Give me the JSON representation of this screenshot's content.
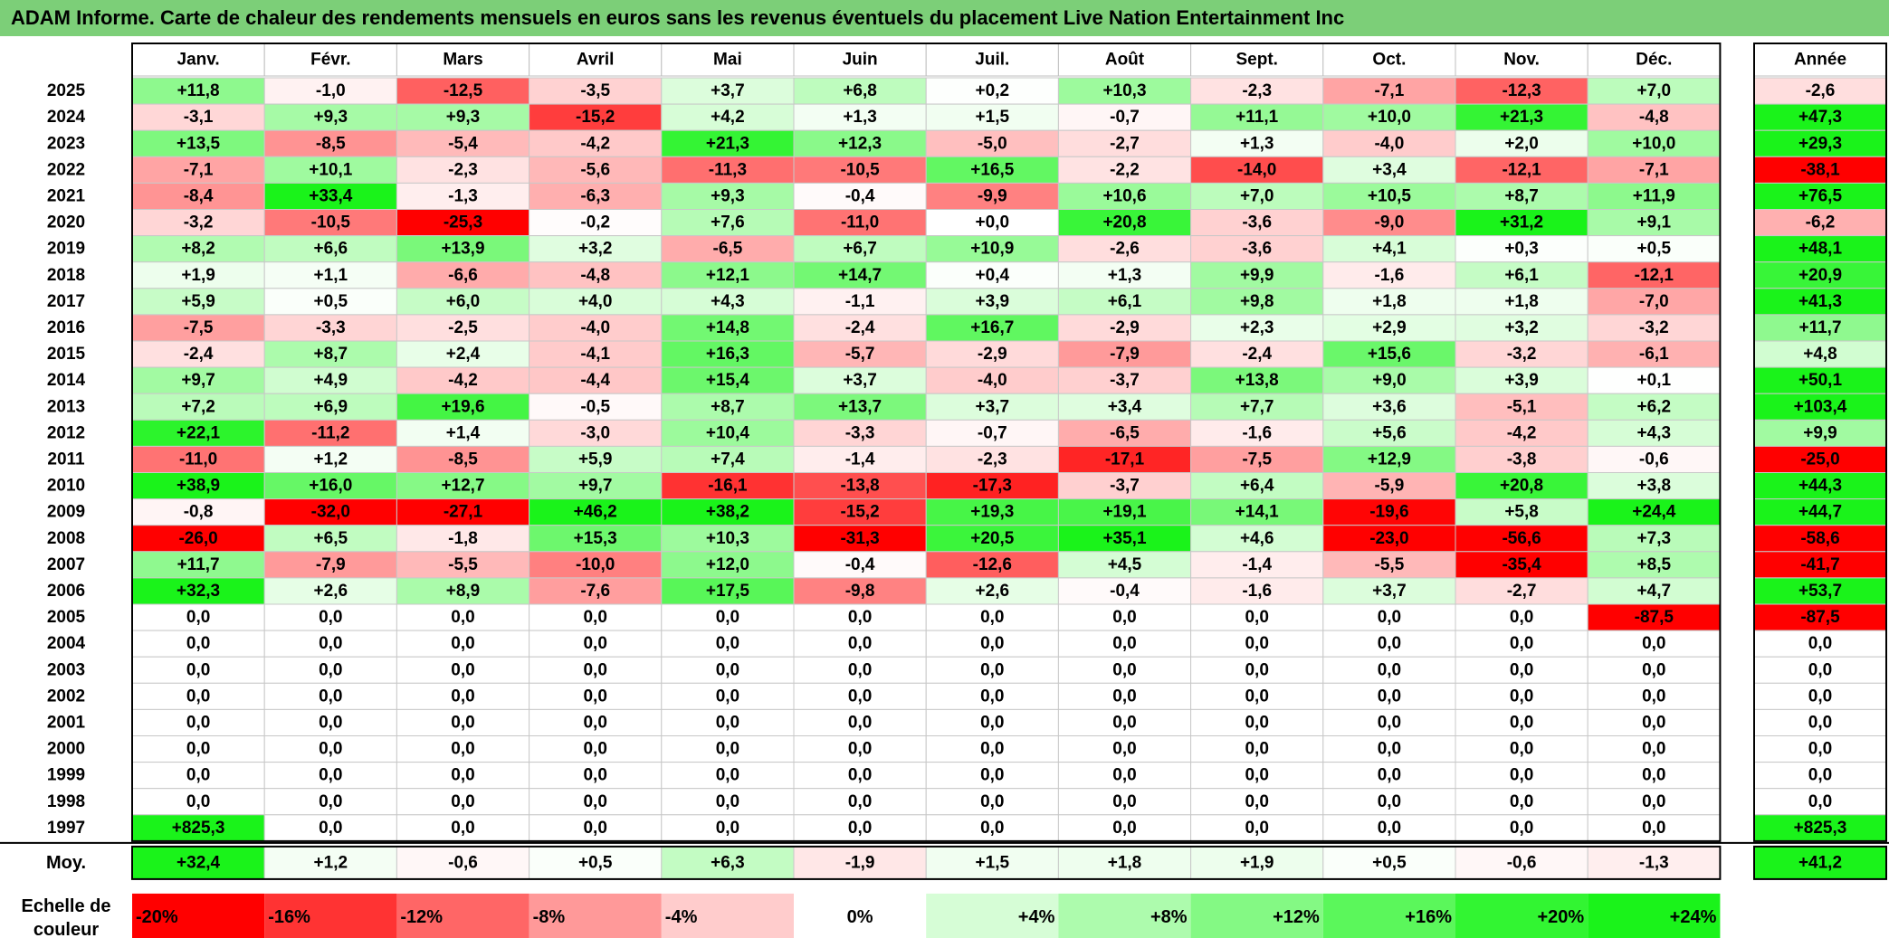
{
  "title": "ADAM Informe. Carte de chaleur des rendements mensuels en euros sans les revenus éventuels du placement Live Nation Entertainment Inc",
  "chart_data": {
    "type": "heatmap",
    "title": "ADAM Informe. Carte de chaleur des rendements mensuels en euros sans les revenus éventuels du placement Live Nation Entertainment Inc",
    "months": [
      "Janv.",
      "Févr.",
      "Mars",
      "Avril",
      "Mai",
      "Juin",
      "Juil.",
      "Août",
      "Sept.",
      "Oct.",
      "Nov.",
      "Déc."
    ],
    "year_column_label": "Année",
    "average_row_label": "Moy.",
    "rows": [
      {
        "year": "2025",
        "values": [
          "+11,8",
          "-1,0",
          "-12,5",
          "-3,5",
          "+3,7",
          "+6,8",
          "+0,2",
          "+10,3",
          "-2,3",
          "-7,1",
          "-12,3",
          "+7,0"
        ],
        "annual": "-2,6"
      },
      {
        "year": "2024",
        "values": [
          "-3,1",
          "+9,3",
          "+9,3",
          "-15,2",
          "+4,2",
          "+1,3",
          "+1,5",
          "-0,7",
          "+11,1",
          "+10,0",
          "+21,3",
          "-4,8"
        ],
        "annual": "+47,3"
      },
      {
        "year": "2023",
        "values": [
          "+13,5",
          "-8,5",
          "-5,4",
          "-4,2",
          "+21,3",
          "+12,3",
          "-5,0",
          "-2,7",
          "+1,3",
          "-4,0",
          "+2,0",
          "+10,0"
        ],
        "annual": "+29,3"
      },
      {
        "year": "2022",
        "values": [
          "-7,1",
          "+10,1",
          "-2,3",
          "-5,6",
          "-11,3",
          "-10,5",
          "+16,5",
          "-2,2",
          "-14,0",
          "+3,4",
          "-12,1",
          "-7,1"
        ],
        "annual": "-38,1"
      },
      {
        "year": "2021",
        "values": [
          "-8,4",
          "+33,4",
          "-1,3",
          "-6,3",
          "+9,3",
          "-0,4",
          "-9,9",
          "+10,6",
          "+7,0",
          "+10,5",
          "+8,7",
          "+11,9"
        ],
        "annual": "+76,5"
      },
      {
        "year": "2020",
        "values": [
          "-3,2",
          "-10,5",
          "-25,3",
          "-0,2",
          "+7,6",
          "-11,0",
          "+0,0",
          "+20,8",
          "-3,6",
          "-9,0",
          "+31,2",
          "+9,1"
        ],
        "annual": "-6,2"
      },
      {
        "year": "2019",
        "values": [
          "+8,2",
          "+6,6",
          "+13,9",
          "+3,2",
          "-6,5",
          "+6,7",
          "+10,9",
          "-2,6",
          "-3,6",
          "+4,1",
          "+0,3",
          "+0,5"
        ],
        "annual": "+48,1"
      },
      {
        "year": "2018",
        "values": [
          "+1,9",
          "+1,1",
          "-6,6",
          "-4,8",
          "+12,1",
          "+14,7",
          "+0,4",
          "+1,3",
          "+9,9",
          "-1,6",
          "+6,1",
          "-12,1"
        ],
        "annual": "+20,9"
      },
      {
        "year": "2017",
        "values": [
          "+5,9",
          "+0,5",
          "+6,0",
          "+4,0",
          "+4,3",
          "-1,1",
          "+3,9",
          "+6,1",
          "+9,8",
          "+1,8",
          "+1,8",
          "-7,0"
        ],
        "annual": "+41,3"
      },
      {
        "year": "2016",
        "values": [
          "-7,5",
          "-3,3",
          "-2,5",
          "-4,0",
          "+14,8",
          "-2,4",
          "+16,7",
          "-2,9",
          "+2,3",
          "+2,9",
          "+3,2",
          "-3,2"
        ],
        "annual": "+11,7"
      },
      {
        "year": "2015",
        "values": [
          "-2,4",
          "+8,7",
          "+2,4",
          "-4,1",
          "+16,3",
          "-5,7",
          "-2,9",
          "-7,9",
          "-2,4",
          "+15,6",
          "-3,2",
          "-6,1"
        ],
        "annual": "+4,8"
      },
      {
        "year": "2014",
        "values": [
          "+9,7",
          "+4,9",
          "-4,2",
          "-4,4",
          "+15,4",
          "+3,7",
          "-4,0",
          "-3,7",
          "+13,8",
          "+9,0",
          "+3,9",
          "+0,1"
        ],
        "annual": "+50,1"
      },
      {
        "year": "2013",
        "values": [
          "+7,2",
          "+6,9",
          "+19,6",
          "-0,5",
          "+8,7",
          "+13,7",
          "+3,7",
          "+3,4",
          "+7,7",
          "+3,6",
          "-5,1",
          "+6,2"
        ],
        "annual": "+103,4"
      },
      {
        "year": "2012",
        "values": [
          "+22,1",
          "-11,2",
          "+1,4",
          "-3,0",
          "+10,4",
          "-3,3",
          "-0,7",
          "-6,5",
          "-1,6",
          "+5,6",
          "-4,2",
          "+4,3"
        ],
        "annual": "+9,9"
      },
      {
        "year": "2011",
        "values": [
          "-11,0",
          "+1,2",
          "-8,5",
          "+5,9",
          "+7,4",
          "-1,4",
          "-2,3",
          "-17,1",
          "-7,5",
          "+12,9",
          "-3,8",
          "-0,6"
        ],
        "annual": "-25,0"
      },
      {
        "year": "2010",
        "values": [
          "+38,9",
          "+16,0",
          "+12,7",
          "+9,7",
          "-16,1",
          "-13,8",
          "-17,3",
          "-3,7",
          "+6,4",
          "-5,9",
          "+20,8",
          "+3,8"
        ],
        "annual": "+44,3"
      },
      {
        "year": "2009",
        "values": [
          "-0,8",
          "-32,0",
          "-27,1",
          "+46,2",
          "+38,2",
          "-15,2",
          "+19,3",
          "+19,1",
          "+14,1",
          "-19,6",
          "+5,8",
          "+24,4"
        ],
        "annual": "+44,7"
      },
      {
        "year": "2008",
        "values": [
          "-26,0",
          "+6,5",
          "-1,8",
          "+15,3",
          "+10,3",
          "-31,3",
          "+20,5",
          "+35,1",
          "+4,6",
          "-23,0",
          "-56,6",
          "+7,3"
        ],
        "annual": "-58,6"
      },
      {
        "year": "2007",
        "values": [
          "+11,7",
          "-7,9",
          "-5,5",
          "-10,0",
          "+12,0",
          "-0,4",
          "-12,6",
          "+4,5",
          "-1,4",
          "-5,5",
          "-35,4",
          "+8,5"
        ],
        "annual": "-41,7"
      },
      {
        "year": "2006",
        "values": [
          "+32,3",
          "+2,6",
          "+8,9",
          "-7,6",
          "+17,5",
          "-9,8",
          "+2,6",
          "-0,4",
          "-1,6",
          "+3,7",
          "-2,7",
          "+4,7"
        ],
        "annual": "+53,7"
      },
      {
        "year": "2005",
        "values": [
          "0,0",
          "0,0",
          "0,0",
          "0,0",
          "0,0",
          "0,0",
          "0,0",
          "0,0",
          "0,0",
          "0,0",
          "0,0",
          "-87,5"
        ],
        "annual": "-87,5"
      },
      {
        "year": "2004",
        "values": [
          "0,0",
          "0,0",
          "0,0",
          "0,0",
          "0,0",
          "0,0",
          "0,0",
          "0,0",
          "0,0",
          "0,0",
          "0,0",
          "0,0"
        ],
        "annual": "0,0"
      },
      {
        "year": "2003",
        "values": [
          "0,0",
          "0,0",
          "0,0",
          "0,0",
          "0,0",
          "0,0",
          "0,0",
          "0,0",
          "0,0",
          "0,0",
          "0,0",
          "0,0"
        ],
        "annual": "0,0"
      },
      {
        "year": "2002",
        "values": [
          "0,0",
          "0,0",
          "0,0",
          "0,0",
          "0,0",
          "0,0",
          "0,0",
          "0,0",
          "0,0",
          "0,0",
          "0,0",
          "0,0"
        ],
        "annual": "0,0"
      },
      {
        "year": "2001",
        "values": [
          "0,0",
          "0,0",
          "0,0",
          "0,0",
          "0,0",
          "0,0",
          "0,0",
          "0,0",
          "0,0",
          "0,0",
          "0,0",
          "0,0"
        ],
        "annual": "0,0"
      },
      {
        "year": "2000",
        "values": [
          "0,0",
          "0,0",
          "0,0",
          "0,0",
          "0,0",
          "0,0",
          "0,0",
          "0,0",
          "0,0",
          "0,0",
          "0,0",
          "0,0"
        ],
        "annual": "0,0"
      },
      {
        "year": "1999",
        "values": [
          "0,0",
          "0,0",
          "0,0",
          "0,0",
          "0,0",
          "0,0",
          "0,0",
          "0,0",
          "0,0",
          "0,0",
          "0,0",
          "0,0"
        ],
        "annual": "0,0"
      },
      {
        "year": "1998",
        "values": [
          "0,0",
          "0,0",
          "0,0",
          "0,0",
          "0,0",
          "0,0",
          "0,0",
          "0,0",
          "0,0",
          "0,0",
          "0,0",
          "0,0"
        ],
        "annual": "0,0"
      },
      {
        "year": "1997",
        "values": [
          "+825,3",
          "0,0",
          "0,0",
          "0,0",
          "0,0",
          "0,0",
          "0,0",
          "0,0",
          "0,0",
          "0,0",
          "0,0",
          "0,0"
        ],
        "annual": "+825,3"
      }
    ],
    "average_row": {
      "values": [
        "+32,4",
        "+1,2",
        "-0,6",
        "+0,5",
        "+6,3",
        "-1,9",
        "+1,5",
        "+1,8",
        "+1,9",
        "+0,5",
        "-0,6",
        "-1,3"
      ],
      "annual": "+41,2"
    },
    "color_scale": {
      "label": "Echelle de couleur",
      "stops": [
        {
          "label": "-20%",
          "value": -20,
          "color": "#ff0000"
        },
        {
          "label": "-16%",
          "value": -16,
          "color": "#ff3333"
        },
        {
          "label": "-12%",
          "value": -12,
          "color": "#ff6666"
        },
        {
          "label": "-8%",
          "value": -8,
          "color": "#ff9999"
        },
        {
          "label": "-4%",
          "value": -4,
          "color": "#ffcccc"
        },
        {
          "label": "0%",
          "value": 0,
          "color": "#ffffff"
        },
        {
          "label": "+4%",
          "value": 4,
          "color": "#d6fdd6"
        },
        {
          "label": "+8%",
          "value": 8,
          "color": "#adfbad"
        },
        {
          "label": "+12%",
          "value": 12,
          "color": "#84f984"
        },
        {
          "label": "+16%",
          "value": 16,
          "color": "#5bf75b"
        },
        {
          "label": "+20%",
          "value": 20,
          "color": "#32f532"
        },
        {
          "label": "+24%",
          "value": 24,
          "color": "#1af31a"
        }
      ]
    }
  }
}
